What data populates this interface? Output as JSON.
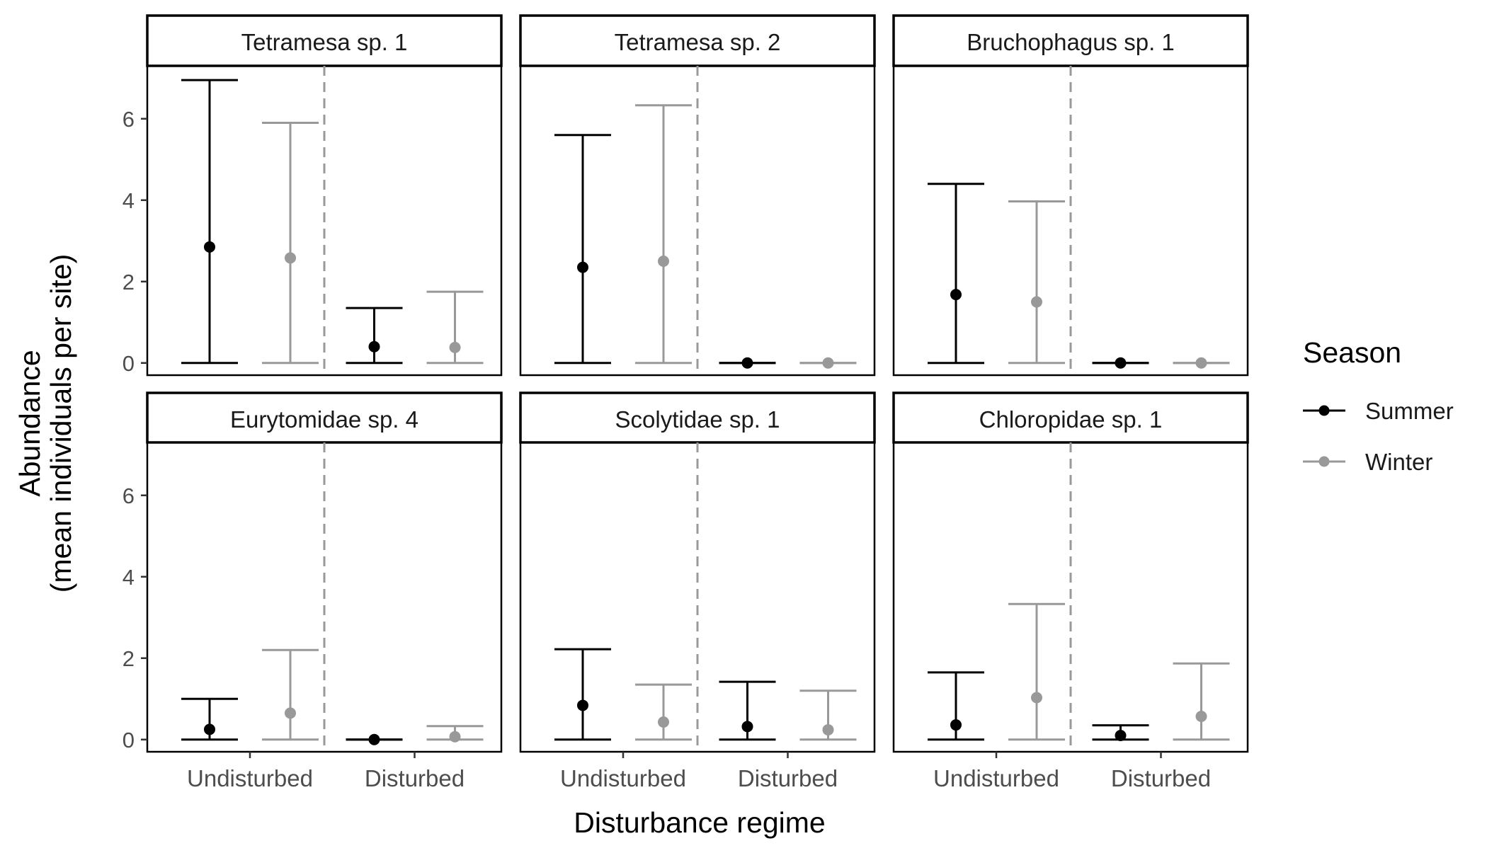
{
  "chart_data": {
    "type": "errorbar",
    "xlabel": "Disturbance regime",
    "ylabel_line1": "Abundance",
    "ylabel_line2": "(mean individuals per site)",
    "categories": [
      "Undisturbed",
      "Disturbed"
    ],
    "ylim": [
      -0.3,
      7.3
    ],
    "yticks": [
      0,
      2,
      4,
      6
    ],
    "grid": false,
    "legend": {
      "title": "Season",
      "position": "right",
      "entries": [
        {
          "name": "Summer",
          "color": "#000000"
        },
        {
          "name": "Winter",
          "color": "#999999"
        }
      ]
    },
    "panels": [
      {
        "title": "Tetramesa sp. 1",
        "series": [
          {
            "name": "Summer",
            "color": "#000000",
            "points": [
              {
                "category": "Undisturbed",
                "mean": 2.85,
                "lower": 0,
                "upper": 6.95
              },
              {
                "category": "Disturbed",
                "mean": 0.4,
                "lower": 0,
                "upper": 1.35
              }
            ]
          },
          {
            "name": "Winter",
            "color": "#999999",
            "points": [
              {
                "category": "Undisturbed",
                "mean": 2.58,
                "lower": 0,
                "upper": 5.9
              },
              {
                "category": "Disturbed",
                "mean": 0.38,
                "lower": 0,
                "upper": 1.75
              }
            ]
          }
        ]
      },
      {
        "title": "Tetramesa sp. 2",
        "series": [
          {
            "name": "Summer",
            "color": "#000000",
            "points": [
              {
                "category": "Undisturbed",
                "mean": 2.35,
                "lower": 0,
                "upper": 5.6
              },
              {
                "category": "Disturbed",
                "mean": 0.0,
                "lower": 0,
                "upper": 0.0
              }
            ]
          },
          {
            "name": "Winter",
            "color": "#999999",
            "points": [
              {
                "category": "Undisturbed",
                "mean": 2.5,
                "lower": 0,
                "upper": 6.33
              },
              {
                "category": "Disturbed",
                "mean": 0.0,
                "lower": 0,
                "upper": 0.0
              }
            ]
          }
        ]
      },
      {
        "title": "Bruchophagus sp. 1",
        "series": [
          {
            "name": "Summer",
            "color": "#000000",
            "points": [
              {
                "category": "Undisturbed",
                "mean": 1.68,
                "lower": 0,
                "upper": 4.4
              },
              {
                "category": "Disturbed",
                "mean": 0.0,
                "lower": 0,
                "upper": 0.0
              }
            ]
          },
          {
            "name": "Winter",
            "color": "#999999",
            "points": [
              {
                "category": "Undisturbed",
                "mean": 1.5,
                "lower": 0,
                "upper": 3.97
              },
              {
                "category": "Disturbed",
                "mean": 0.0,
                "lower": 0,
                "upper": 0.0
              }
            ]
          }
        ]
      },
      {
        "title": "Eurytomidae sp. 4",
        "series": [
          {
            "name": "Summer",
            "color": "#000000",
            "points": [
              {
                "category": "Undisturbed",
                "mean": 0.25,
                "lower": 0,
                "upper": 1.0
              },
              {
                "category": "Disturbed",
                "mean": 0.0,
                "lower": 0,
                "upper": 0.0
              }
            ]
          },
          {
            "name": "Winter",
            "color": "#999999",
            "points": [
              {
                "category": "Undisturbed",
                "mean": 0.65,
                "lower": 0,
                "upper": 2.2
              },
              {
                "category": "Disturbed",
                "mean": 0.07,
                "lower": 0,
                "upper": 0.33
              }
            ]
          }
        ]
      },
      {
        "title": "Scolytidae sp. 1",
        "series": [
          {
            "name": "Summer",
            "color": "#000000",
            "points": [
              {
                "category": "Undisturbed",
                "mean": 0.84,
                "lower": 0,
                "upper": 2.22
              },
              {
                "category": "Disturbed",
                "mean": 0.32,
                "lower": 0,
                "upper": 1.42
              }
            ]
          },
          {
            "name": "Winter",
            "color": "#999999",
            "points": [
              {
                "category": "Undisturbed",
                "mean": 0.43,
                "lower": 0,
                "upper": 1.35
              },
              {
                "category": "Disturbed",
                "mean": 0.24,
                "lower": 0,
                "upper": 1.2
              }
            ]
          }
        ]
      },
      {
        "title": "Chloropidae sp. 1",
        "series": [
          {
            "name": "Summer",
            "color": "#000000",
            "points": [
              {
                "category": "Undisturbed",
                "mean": 0.36,
                "lower": 0,
                "upper": 1.65
              },
              {
                "category": "Disturbed",
                "mean": 0.1,
                "lower": 0,
                "upper": 0.35
              }
            ]
          },
          {
            "name": "Winter",
            "color": "#999999",
            "points": [
              {
                "category": "Undisturbed",
                "mean": 1.03,
                "lower": 0,
                "upper": 3.33
              },
              {
                "category": "Disturbed",
                "mean": 0.57,
                "lower": 0,
                "upper": 1.87
              }
            ]
          }
        ]
      }
    ]
  }
}
